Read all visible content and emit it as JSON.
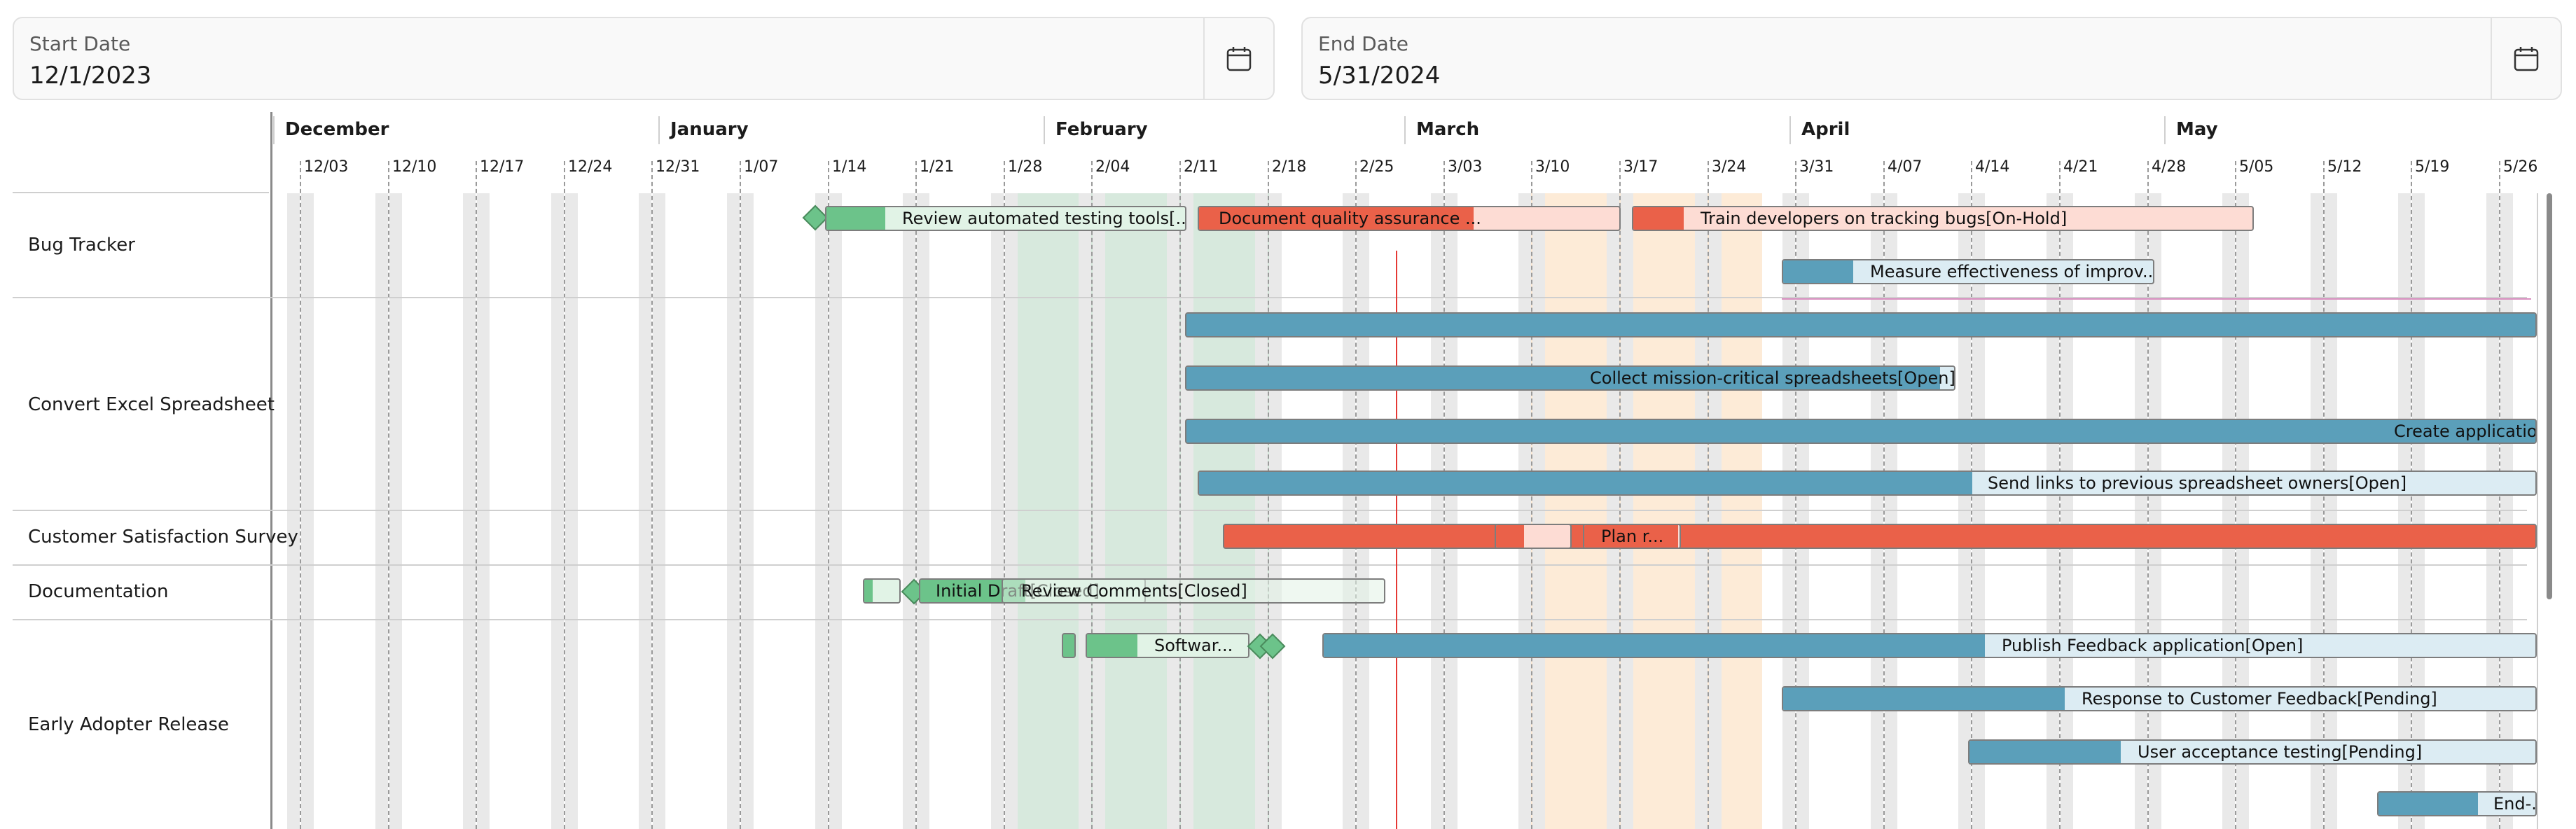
{
  "start_date": {
    "label": "Start Date",
    "value": "12/1/2023"
  },
  "end_date": {
    "label": "End Date",
    "value": "5/31/2024"
  },
  "icons": {
    "calendar": "calendar-icon",
    "milestone": "diamond-icon"
  },
  "colors": {
    "open": "#5b9fba",
    "open_light": "#dcecf3",
    "onhold": "#ea6149",
    "onhold_light": "#fddcd4",
    "closed": "#6cc38a",
    "closed_light": "#e1f3e6",
    "today": "#e53935",
    "highlight_green": "#d7e9dd",
    "highlight_orange": "#fdebd7"
  },
  "timeline": {
    "months": [
      "December",
      "January",
      "February",
      "March",
      "April",
      "May"
    ],
    "weeks": [
      "12/03",
      "12/10",
      "12/17",
      "12/24",
      "12/31",
      "1/07",
      "1/14",
      "1/21",
      "1/28",
      "2/04",
      "2/11",
      "2/18",
      "2/25",
      "3/03",
      "3/10",
      "3/17",
      "3/24",
      "3/31",
      "4/07",
      "4/14",
      "4/21",
      "4/28",
      "5/05",
      "5/12",
      "5/19",
      "5/26"
    ]
  },
  "rows": [
    "Bug Tracker",
    "Convert Excel Spreadsheet",
    "Customer Satisfaction Survey",
    "Documentation",
    "Early Adopter Release"
  ],
  "tasks": {
    "review_testing_tools": "Review automated testing tools[...",
    "document_qa": "Document quality assurance ...",
    "train_devs": "Train developers on tracking bugs[On-Hold]",
    "measure_effectiveness": "Measure effectiveness of improv...",
    "convert_bar1": "",
    "collect_spreadsheets": "Collect mission-critical spreadsheets[Open]",
    "create_application": "Create application",
    "send_links": "Send links to previous spreadsheet owners[Open]",
    "plan_r": "Plan r...",
    "initial_draft": "Initial Draft[Closed]",
    "review_comments": "Review Comments[Closed]",
    "software": "Softwar...",
    "publish_feedback": "Publish Feedback application[Open]",
    "response_feedback": "Response to Customer Feedback[Pending]",
    "user_acceptance": "User acceptance testing[Pending]",
    "end": "End-..."
  }
}
